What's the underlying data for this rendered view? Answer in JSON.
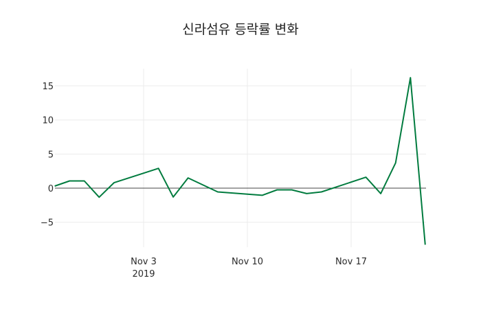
{
  "chart_data": {
    "type": "line",
    "title": "신라섬유 등락률 변화",
    "xlabel": "",
    "ylabel": "",
    "ylim": [
      -8.5,
      17.5
    ],
    "grid": true,
    "legend": "none",
    "x_ticks": [
      {
        "date": "2019-11-03",
        "label": "Nov 3",
        "sublabel": "2019"
      },
      {
        "date": "2019-11-10",
        "label": "Nov 10",
        "sublabel": ""
      },
      {
        "date": "2019-11-17",
        "label": "Nov 17",
        "sublabel": ""
      }
    ],
    "y_ticks": [
      -5,
      0,
      5,
      10,
      15
    ],
    "y_tick_labels": [
      "−5",
      "0",
      "5",
      "10",
      "15"
    ],
    "series": [
      {
        "name": "등락률",
        "color": "#007b3e",
        "x": [
          "2019-10-28",
          "2019-10-29",
          "2019-10-30",
          "2019-10-31",
          "2019-11-01",
          "2019-11-04",
          "2019-11-05",
          "2019-11-06",
          "2019-11-08",
          "2019-11-11",
          "2019-11-12",
          "2019-11-13",
          "2019-11-14",
          "2019-11-15",
          "2019-11-18",
          "2019-11-19",
          "2019-11-20",
          "2019-11-21",
          "2019-11-22"
        ],
        "values": [
          0.3,
          1.06,
          1.06,
          -1.33,
          0.8,
          2.9,
          -1.3,
          1.5,
          -0.55,
          -1.05,
          -0.25,
          -0.25,
          -0.8,
          -0.55,
          1.6,
          -0.8,
          3.7,
          16.2,
          -8.3
        ]
      }
    ]
  }
}
